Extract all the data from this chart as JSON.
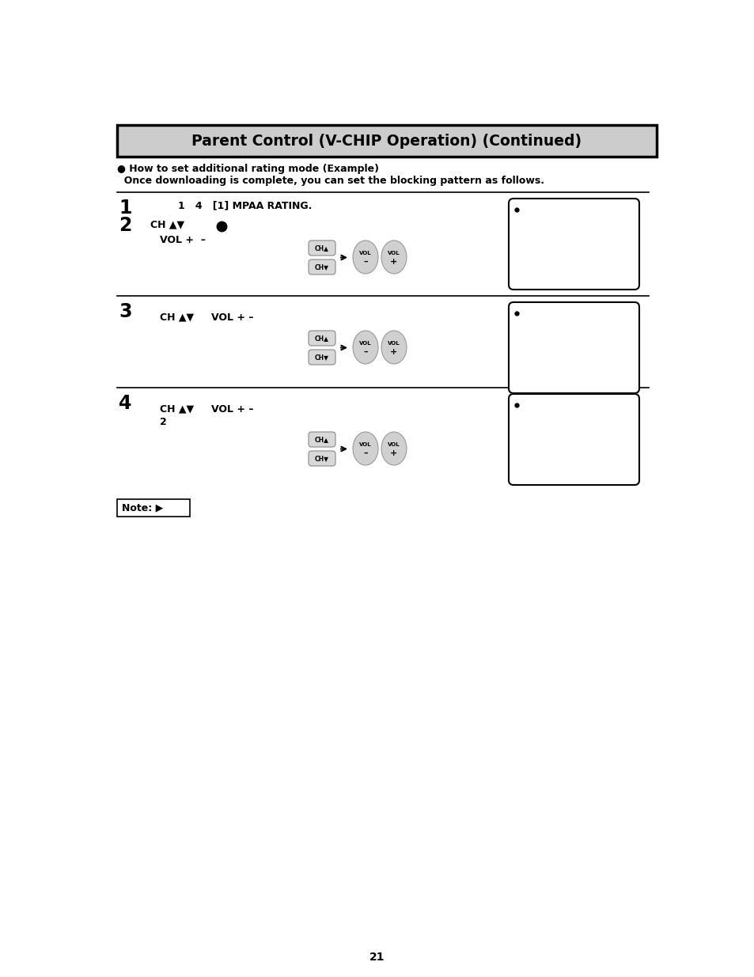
{
  "title": "Parent Control (V-CHIP Operation) (Continued)",
  "bg_color": "#ffffff",
  "title_bg": "#cccccc",
  "title_border": "#000000",
  "bullet_intro_line1": "● How to set additional rating mode (Example)",
  "bullet_intro_line2": "  Once downloading is complete, you can set the blocking pattern as follows.",
  "section1_num1": "1",
  "section1_num2": "2",
  "section1_text1": "1   4   [1] MPAA RATING.",
  "section1_text2": "CH ▲▼",
  "section1_text3": "VOL +  –",
  "section2_num": "3",
  "section2_text1": "CH ▲▼     VOL + –",
  "section3_num": "4",
  "section3_text1": "CH ▲▼     VOL + –",
  "section3_text2": "2",
  "note_text": "Note: ▶",
  "page_num": "21"
}
